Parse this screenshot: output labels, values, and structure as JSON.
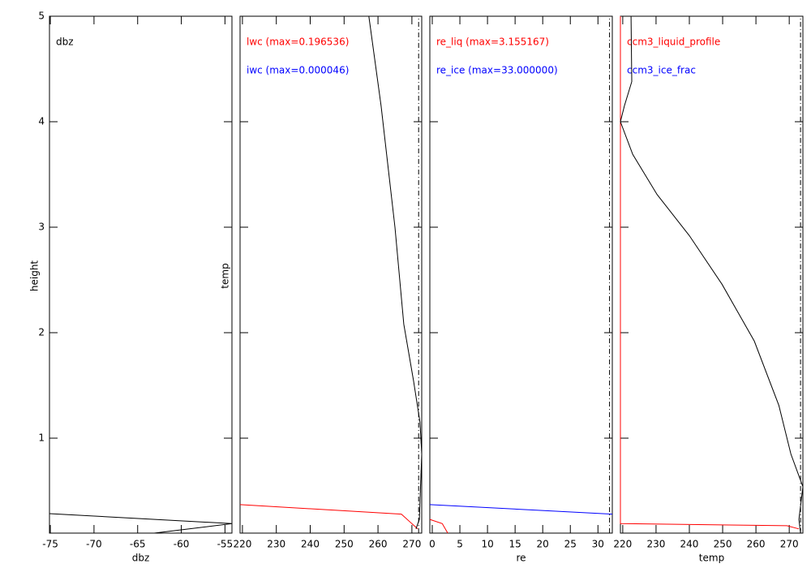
{
  "chart_data": [
    {
      "type": "line",
      "xlabel": "dbz",
      "ylabel": "height",
      "xlim": [
        -75.1,
        -54.2
      ],
      "ylim": [
        0.1,
        5
      ],
      "xticks": [
        -75,
        -70,
        -65,
        -60,
        -55
      ],
      "yticks": [
        1,
        2,
        3,
        4,
        5
      ],
      "show_ytick_labels": true,
      "series": [
        {
          "name": "dbz",
          "color": "#000000",
          "x": [
            -75.1,
            -54.2,
            -63.1
          ],
          "values": [
            0.285,
            0.19,
            0.1
          ]
        }
      ]
    },
    {
      "type": "line",
      "ylabel": "temp",
      "xlim": [
        219.3,
        272.9
      ],
      "ylim": [
        0.1,
        5
      ],
      "xticks": [
        220,
        230,
        240,
        250,
        260,
        270
      ],
      "yticks": [
        1,
        2,
        3,
        4,
        5
      ],
      "show_ytick_labels": false,
      "series": [
        {
          "name": "lwc (max=0.196536)",
          "color": "#ff0000",
          "x": [
            219.3,
            266.9,
            271.7
          ],
          "values": [
            0.37,
            0.28,
            0.14
          ]
        },
        {
          "name": "iwc (max=0.000046)",
          "color": "#0000ff",
          "x": [],
          "values": []
        },
        {
          "color": "#000000",
          "x": [
            257.3,
            260.9,
            265.0,
            267.6,
            270.5,
            272.4,
            272.9,
            272.2,
            271.2
          ],
          "values": [
            5,
            4.15,
            3,
            2.08,
            1.54,
            1.15,
            0.85,
            0.23,
            0.14
          ]
        },
        {
          "color": "#000000",
          "dashed": true,
          "x": [
            272,
            272
          ],
          "values": [
            0.1,
            5
          ]
        }
      ]
    },
    {
      "type": "line",
      "xlabel": "re",
      "xlim": [
        -0.44,
        32.6
      ],
      "ylim": [
        0.1,
        5
      ],
      "xticks": [
        0,
        5,
        10,
        15,
        20,
        25,
        30
      ],
      "yticks": [
        1,
        2,
        3,
        4,
        5
      ],
      "show_ytick_labels": false,
      "series": [
        {
          "name": "re_liq (max=3.155167)",
          "color": "#ff0000",
          "x": [
            -0.44,
            1.8,
            2.8
          ],
          "values": [
            0.23,
            0.19,
            0.1
          ]
        },
        {
          "name": "re_ice (max=33.000000)",
          "color": "#0000ff",
          "x": [
            -0.44,
            32.6
          ],
          "values": [
            0.37,
            0.28
          ]
        },
        {
          "color": "#000000",
          "dashed": true,
          "x": [
            32.1,
            32.1
          ],
          "values": [
            0.1,
            5
          ]
        }
      ]
    },
    {
      "type": "line",
      "xlabel": "temp",
      "xlim": [
        219.3,
        274.1
      ],
      "ylim": [
        0.1,
        5
      ],
      "xticks": [
        220,
        230,
        240,
        250,
        260,
        270
      ],
      "yticks": [
        1,
        2,
        3,
        4,
        5
      ],
      "show_ytick_labels": false,
      "series": [
        {
          "name": "ccm3_liquid_profile",
          "color": "#ff0000",
          "x": [
            219.3,
            219.3,
            269.3,
            272.9
          ],
          "values": [
            5,
            0.19,
            0.17,
            0.14
          ]
        },
        {
          "name": "ccm3_ice_frac",
          "color": "#0000ff",
          "x": [],
          "values": []
        },
        {
          "color": "#000000",
          "x": [
            222.5,
            222.7,
            220.5,
            219.3,
            223,
            230.3,
            240,
            249.8,
            259.5,
            266.9,
            270.5,
            274.1,
            272.9,
            273.4
          ],
          "values": [
            5,
            4.38,
            4.15,
            4,
            3.69,
            3.31,
            2.92,
            2.46,
            1.92,
            1.31,
            0.85,
            0.54,
            0.23,
            0.1
          ]
        },
        {
          "color": "#000000",
          "dashed": true,
          "x": [
            273.4,
            273.4
          ],
          "values": [
            0.1,
            5
          ]
        }
      ]
    }
  ]
}
